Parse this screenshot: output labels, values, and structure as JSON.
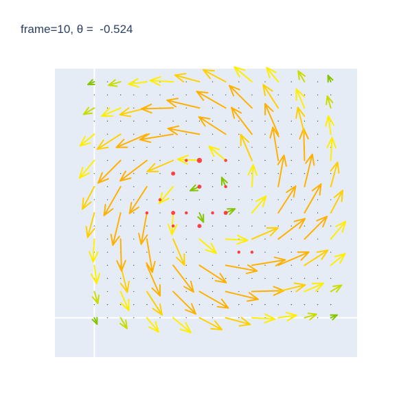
{
  "title": "frame=10, θ =  -0.524",
  "colors": {
    "plot_bg": "#e5ecf6",
    "grid": "#ffffff",
    "marker": "#ff2a2a",
    "arrow_scale": [
      "#5aa000",
      "#84c400",
      "#c8dc00",
      "#ffee00",
      "#ffd000",
      "#ffb000",
      "#ff9800"
    ]
  },
  "chart_data": {
    "type": "quiver",
    "title": "frame=10, θ =  -0.524",
    "xlabel": "",
    "ylabel": "",
    "grid": "on",
    "xlim": [
      -1.5,
      10.0
    ],
    "ylim": [
      -1.5,
      9.5
    ],
    "grid_size": 9,
    "field": {
      "center": [
        4.5,
        4.5
      ],
      "radius": 3.0,
      "swirl": 1.7,
      "sink": 0.25,
      "rotation_deg": -30
    },
    "markers": [
      {
        "x": 4.0,
        "y": 5.0,
        "size": 4
      },
      {
        "x": 5.0,
        "y": 5.0,
        "size": 3
      },
      {
        "x": 5.0,
        "y": 4.0,
        "size": 4
      },
      {
        "x": 4.0,
        "y": 3.5,
        "size": 4
      },
      {
        "x": 3.0,
        "y": 5.5,
        "size": 4
      },
      {
        "x": 4.0,
        "y": 6.0,
        "size": 5
      },
      {
        "x": 3.5,
        "y": 6.0,
        "size": 3
      },
      {
        "x": 5.0,
        "y": 6.0,
        "size": 3
      },
      {
        "x": 4.5,
        "y": 4.0,
        "size": 3
      },
      {
        "x": 3.5,
        "y": 4.0,
        "size": 3
      },
      {
        "x": 3.0,
        "y": 3.5,
        "size": 3
      },
      {
        "x": 2.5,
        "y": 4.5,
        "size": 3
      },
      {
        "x": 2.0,
        "y": 4.0,
        "size": 3
      },
      {
        "x": 3.0,
        "y": 4.0,
        "size": 4
      },
      {
        "x": 5.5,
        "y": 2.5,
        "size": 3
      },
      {
        "x": 6.0,
        "y": 2.5,
        "size": 3
      }
    ]
  }
}
